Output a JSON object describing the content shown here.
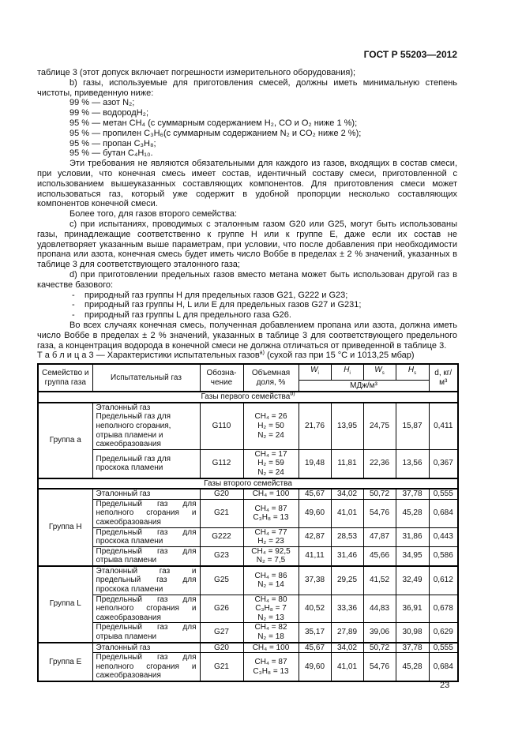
{
  "header": {
    "doc_id": "ГОСТ Р 55203—2012"
  },
  "paragraphs": {
    "p1": "таблице 3 (этот допуск включает погрешности измерительного оборудования);",
    "p2": "b) газы, используемые для приготовления смесей, должны иметь минимальную степень чистоты, приведенную ниже:",
    "purity": [
      "99 % — азот N₂;",
      "99 % — водородH₂;",
      "95 % — метан CH₄ (с суммарным содержанием H₂, CO и O₂ ниже 1 %);",
      "95 % — пропилен C₃H₆(с суммарным содержанием N₂ и CO₂ ниже 2 %);",
      "95 % — пропан C₃H₈;",
      "95 % — бутан C₄H₁₀."
    ],
    "p3": "Эти требования не являются обязательными для каждого из газов, входящих в состав смеси, при условии, что конечная смесь имеет состав, идентичный составу смеси, приготовленной с использованием вышеуказанных составляющих компонентов. Для приготовления смеси может использоваться газ, который уже содержит в удобной пропорции несколько составляющих компонентов конечной смеси.",
    "p4": "Более того, для газов второго семейства:",
    "p5": "c) при испытаниях, проводимых с эталонным газом G20 или G25, могут быть использованы газы, принадлежащие соответственно к группе H или к группе E, даже если их состав не удовлетворяет указанным выше параметрам, при условии, что после добавления при необходимости пропана или азота, конечная смесь будет иметь число Воббе в пределах ± 2 % значений, указанных в таблице 3 для соответствующего эталонного газа;",
    "p6": "d) при приготовлении предельных газов вместо метана может быть использован другой газ в качестве базового:",
    "bullets": [
      "природный газ группы H для предельных газов G21, G222 и G23;",
      "природный газ группы H, L или E для предельных газов G27 и G231;",
      "природный газ группы L для предельного газа G26."
    ],
    "p7": "Во всех случаях конечная смесь, полученная добавлением пропана или азота, должна иметь число Воббе в пределах ± 2 % значений, указанных в таблице 3 для соответствующего предельного газа, а концентрация водорода в конечной смеси не должна отличаться от приведенной в таблице 3."
  },
  "table": {
    "caption_label": "Т а б л и ц а 3",
    "caption_text": " — Характеристики испытательных газов",
    "caption_note": "a)",
    "caption_tail": " (сухой газ при 15 °C и 1013,25 мбар)",
    "headers": {
      "family": "Семейство и группа газа",
      "gas": "Испытательный газ",
      "code": "Обозна-чение",
      "fraction": "Объемная доля, %",
      "wi": "W",
      "wi_sub": "i",
      "hi": "H",
      "hi_sub": "i",
      "ws": "W",
      "ws_sub": "s",
      "hs": "H",
      "hs_sub": "s",
      "d": "d, кг/м³",
      "units": "МДж/м³"
    },
    "families": [
      {
        "title": "Газы первого семейства",
        "note": "b)",
        "justify": false,
        "groups": [
          {
            "name": "Группа a",
            "rows": [
              {
                "gas": [
                  "Эталонный газ",
                  "Предельный газ для неполного сгорания, отрыва пламени и сажеобразования"
                ],
                "code": "G110",
                "comp": [
                  "CH₄ = 26",
                  "H₂ = 50",
                  "N₂ = 24"
                ],
                "wi": "21,76",
                "hi": "13,95",
                "ws": "24,75",
                "hs": "15,87",
                "d": "0,411"
              },
              {
                "gas": [
                  "Предельный газ для проскока пламени"
                ],
                "code": "G112",
                "comp": [
                  "CH₄ = 17",
                  "H₂ = 59",
                  "N₂ = 24"
                ],
                "wi": "19,48",
                "hi": "11,81",
                "ws": "22,36",
                "hs": "13,56",
                "d": "0,367"
              }
            ]
          }
        ]
      },
      {
        "title": "Газы второго семейства",
        "note": "",
        "justify": true,
        "groups": [
          {
            "name": "Группа H",
            "rows": [
              {
                "gas": [
                  "Эталонный газ"
                ],
                "code": "G20",
                "comp": [
                  "CH₄ = 100"
                ],
                "wi": "45,67",
                "hi": "34,02",
                "ws": "50,72",
                "hs": "37,78",
                "d": "0,555"
              },
              {
                "gas": [
                  "Предельный газ для неполного сгорания и сажеобразования"
                ],
                "code": "G21",
                "comp": [
                  "CH₄ = 87",
                  "C₃H₈ = 13"
                ],
                "wi": "49,60",
                "hi": "41,01",
                "ws": "54,76",
                "hs": "45,28",
                "d": "0,684"
              },
              {
                "gas": [
                  "Предельный газ для проскока пламени"
                ],
                "code": "G222",
                "comp": [
                  "CH₄ = 77",
                  "H₂ = 23"
                ],
                "wi": "42,87",
                "hi": "28,53",
                "ws": "47,87",
                "hs": "31,86",
                "d": "0,443"
              },
              {
                "gas": [
                  "Предельный газ для отрыва пламени"
                ],
                "code": "G23",
                "comp": [
                  "CH₄ = 92,5",
                  "N₂ = 7,5"
                ],
                "wi": "41,11",
                "hi": "31,46",
                "ws": "45,66",
                "hs": "34,95",
                "d": "0,586"
              }
            ]
          },
          {
            "name": "Группа L",
            "rows": [
              {
                "gas": [
                  "Эталонный газ и предельный газ для проскока пламени"
                ],
                "code": "G25",
                "comp": [
                  "CH₄ = 86",
                  "N₂ = 14"
                ],
                "wi": "37,38",
                "hi": "29,25",
                "ws": "41,52",
                "hs": "32,49",
                "d": "0,612"
              },
              {
                "gas": [
                  "Предельный газ для неполного сгорания и сажеобразования"
                ],
                "code": "G26",
                "comp": [
                  "CH₄ = 80",
                  "C₃H₈ = 7",
                  "N₂ = 13"
                ],
                "wi": "40,52",
                "hi": "33,36",
                "ws": "44,83",
                "hs": "36,91",
                "d": "0,678"
              },
              {
                "gas": [
                  "Предельный газ для отрыва пламени"
                ],
                "code": "G27",
                "comp": [
                  "CH₄ = 82",
                  "N₂ = 18"
                ],
                "wi": "35,17",
                "hi": "27,89",
                "ws": "39,06",
                "hs": "30,98",
                "d": "0,629"
              }
            ]
          },
          {
            "name": "Группа E",
            "rows": [
              {
                "gas": [
                  "Эталонный газ"
                ],
                "code": "G20",
                "comp": [
                  "CH₄ = 100"
                ],
                "wi": "45,67",
                "hi": "34,02",
                "ws": "50,72",
                "hs": "37,78",
                "d": "0,555"
              },
              {
                "gas": [
                  "Предельный газ для неполного сгорания и сажеобразования"
                ],
                "code": "G21",
                "comp": [
                  "CH₄ = 87",
                  "C₃H₈ = 13"
                ],
                "wi": "49,60",
                "hi": "41,01",
                "ws": "54,76",
                "hs": "45,28",
                "d": "0,684"
              }
            ]
          }
        ]
      }
    ]
  },
  "footer": {
    "page_number": "23"
  }
}
